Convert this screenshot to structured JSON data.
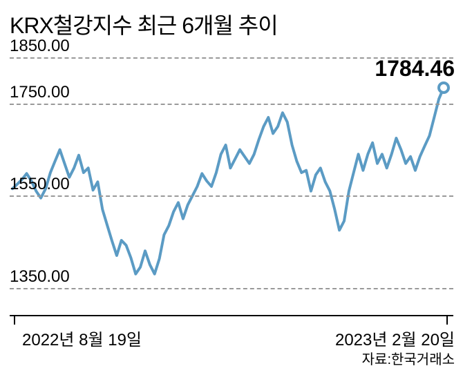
{
  "chart": {
    "type": "line",
    "title": "KRX철강지수 최근 6개월 추이",
    "title_fontsize": 32,
    "title_color": "#000000",
    "line_color": "#5b9bc4",
    "line_width": 4,
    "background_color": "#ffffff",
    "grid_color": "#999999",
    "grid_style": "dashed",
    "axis_color": "#000000",
    "ylim": [
      1300,
      1870
    ],
    "yticks": [
      1350.0,
      1550.0,
      1750.0,
      1850.0
    ],
    "ytick_labels": [
      "1350.00",
      "1550.00",
      "1750.00",
      "1850.00"
    ],
    "ylabel_fontsize": 24,
    "x_start_label": "2022년 8월 19일",
    "x_end_label": "2023년 2월 20일",
    "xlabel_fontsize": 24,
    "final_value": 1784.46,
    "final_value_label": "1784.46",
    "final_value_fontsize": 32,
    "marker_fill": "#ffffff",
    "marker_stroke": "#5b9bc4",
    "marker_size": 18,
    "source": "자료:한국거래소",
    "source_fontsize": 20,
    "values": [
      1565,
      1575,
      1585,
      1598,
      1582,
      1560,
      1545,
      1565,
      1600,
      1625,
      1650,
      1620,
      1590,
      1610,
      1638,
      1600,
      1610,
      1562,
      1580,
      1520,
      1486,
      1452,
      1420,
      1453,
      1442,
      1415,
      1380,
      1395,
      1430,
      1400,
      1380,
      1413,
      1465,
      1485,
      1515,
      1535,
      1500,
      1530,
      1550,
      1570,
      1598,
      1582,
      1570,
      1600,
      1640,
      1660,
      1610,
      1630,
      1650,
      1635,
      1620,
      1640,
      1672,
      1700,
      1720,
      1685,
      1700,
      1730,
      1710,
      1660,
      1625,
      1600,
      1605,
      1560,
      1595,
      1610,
      1580,
      1560,
      1520,
      1475,
      1495,
      1560,
      1600,
      1640,
      1605,
      1640,
      1665,
      1620,
      1640,
      1610,
      1640,
      1675,
      1650,
      1620,
      1635,
      1605,
      1635,
      1658,
      1680,
      1720,
      1760,
      1784.46
    ]
  }
}
